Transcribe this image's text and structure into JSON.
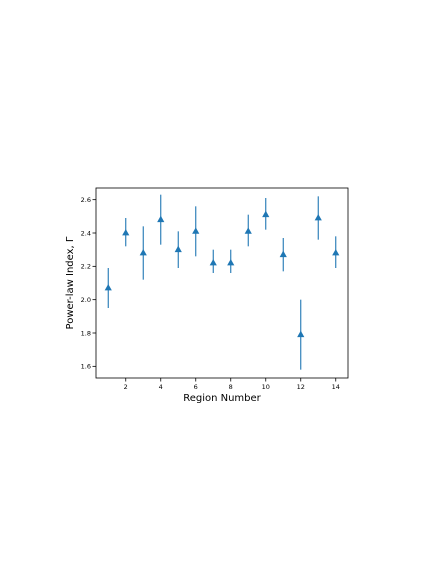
{
  "chart_data": {
    "type": "scatter",
    "title": "",
    "xlabel": "Region Number",
    "ylabel": "Power-law Index, Γ",
    "xlim": [
      0.3,
      14.7
    ],
    "ylim": [
      1.53,
      2.67
    ],
    "xticks": [
      2,
      4,
      6,
      8,
      10,
      12,
      14
    ],
    "yticks": [
      1.6,
      1.8,
      2.0,
      2.2,
      2.4,
      2.6
    ],
    "xtick_labels": [
      "2",
      "4",
      "6",
      "8",
      "10",
      "12",
      "14"
    ],
    "ytick_labels": [
      "1.6",
      "1.8",
      "2.0",
      "2.2",
      "2.4",
      "2.6"
    ],
    "marker": "triangle-up",
    "color": "#1f77b4",
    "grid": false,
    "series": [
      {
        "x": [
          1,
          2,
          3,
          4,
          5,
          6,
          7,
          8,
          9,
          10,
          11,
          12,
          13,
          14
        ],
        "y": [
          2.07,
          2.4,
          2.28,
          2.48,
          2.3,
          2.41,
          2.22,
          2.22,
          2.41,
          2.51,
          2.27,
          1.79,
          2.49,
          2.28
        ],
        "y_low": [
          1.95,
          2.32,
          2.12,
          2.33,
          2.19,
          2.26,
          2.16,
          2.16,
          2.32,
          2.42,
          2.17,
          1.58,
          2.36,
          2.19
        ],
        "y_high": [
          2.19,
          2.49,
          2.44,
          2.63,
          2.41,
          2.56,
          2.3,
          2.3,
          2.51,
          2.61,
          2.37,
          2.0,
          2.62,
          2.38
        ]
      }
    ]
  }
}
